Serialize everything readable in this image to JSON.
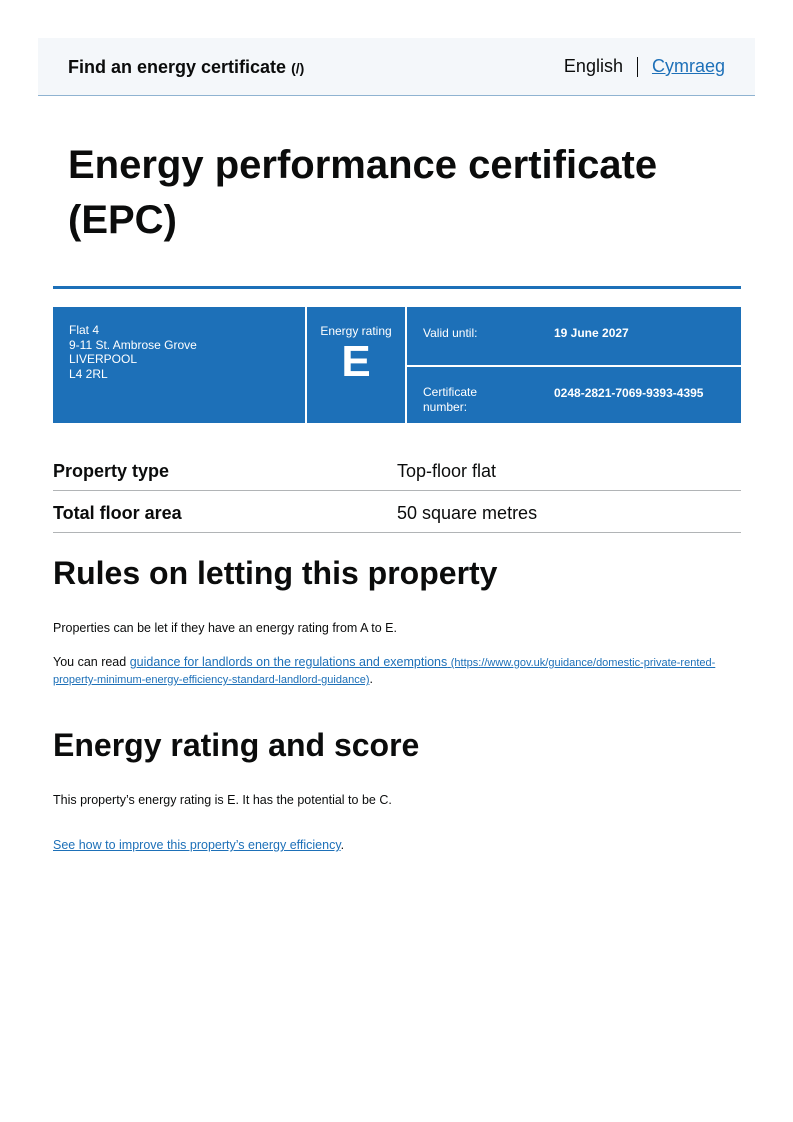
{
  "header": {
    "service_name": "Find an energy certificate",
    "service_link": "(/)",
    "lang_current": "English",
    "lang_other": "Cymraeg"
  },
  "page_title": "Energy performance certificate (EPC)",
  "summary": {
    "address": [
      "Flat 4",
      "9-11 St. Ambrose Grove",
      "LIVERPOOL",
      "L4 2RL"
    ],
    "rating_label": "Energy rating",
    "rating": "E",
    "valid_label": "Valid until:",
    "valid_value": "19 June 2027",
    "cert_label": "Certificate number:",
    "cert_value": "0248-2821-7069-9393-4395",
    "color": "#1d70b8"
  },
  "property": [
    {
      "label": "Property type",
      "value": "Top-floor flat"
    },
    {
      "label": "Total floor area",
      "value": "50 square metres"
    }
  ],
  "letting": {
    "heading": "Rules on letting this property",
    "p1": "Properties can be let if they have an energy rating from A to E.",
    "p2_prefix": "You can read ",
    "link_text": "guidance for landlords on the regulations and exemptions",
    "link_url": "(https://www.gov.uk/guidance/domestic-private-rented-property-minimum-energy-efficiency-standard-landlord-guidance)",
    "p2_suffix": "."
  },
  "rating_section": {
    "heading": "Energy rating and score",
    "p1": "This property’s energy rating is E. It has the potential to be C.",
    "link_text": "See how to improve this property’s energy efficiency",
    "link_suffix": "."
  }
}
